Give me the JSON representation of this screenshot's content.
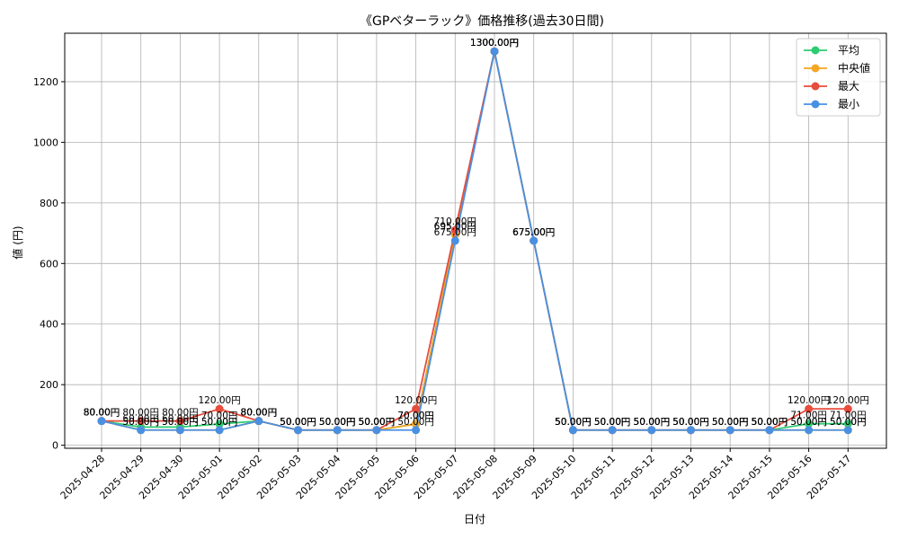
{
  "chart_data": {
    "type": "line",
    "title": "《GPベターラック》価格推移(過去30日間)",
    "xlabel": "日付",
    "ylabel": "値 (円)",
    "ylim": [
      -10,
      1360
    ],
    "yticks": [
      0,
      200,
      400,
      600,
      800,
      1000,
      1200
    ],
    "grid": true,
    "legend_position": "top-right",
    "value_suffix": "円",
    "categories": [
      "2025-04-28",
      "2025-04-29",
      "2025-04-30",
      "2025-05-01",
      "2025-05-02",
      "2025-05-03",
      "2025-05-04",
      "2025-05-05",
      "2025-05-06",
      "2025-05-07",
      "2025-05-08",
      "2025-05-09",
      "2025-05-10",
      "2025-05-11",
      "2025-05-12",
      "2025-05-13",
      "2025-05-14",
      "2025-05-15",
      "2025-05-16",
      "2025-05-17"
    ],
    "series": [
      {
        "name": "平均",
        "color": "#2ecc71",
        "values": [
          80,
          60,
          60,
          70,
          80,
          50,
          50,
          50,
          70,
          695,
          1300,
          675,
          50,
          50,
          50,
          50,
          50,
          50,
          71,
          71
        ]
      },
      {
        "name": "中央値",
        "color": "#f5a623",
        "values": [
          80,
          50,
          50,
          50,
          80,
          50,
          50,
          50,
          70,
          695,
          1300,
          675,
          50,
          50,
          50,
          50,
          50,
          50,
          50,
          50
        ]
      },
      {
        "name": "最大",
        "color": "#e74c3c",
        "values": [
          80,
          80,
          80,
          120,
          80,
          50,
          50,
          50,
          120,
          710,
          1300,
          675,
          50,
          50,
          50,
          50,
          50,
          50,
          120,
          120
        ]
      },
      {
        "name": "最小",
        "color": "#4a90e2",
        "values": [
          80,
          50,
          50,
          50,
          80,
          50,
          50,
          50,
          50,
          675,
          1300,
          675,
          50,
          50,
          50,
          50,
          50,
          50,
          50,
          50
        ]
      }
    ]
  }
}
